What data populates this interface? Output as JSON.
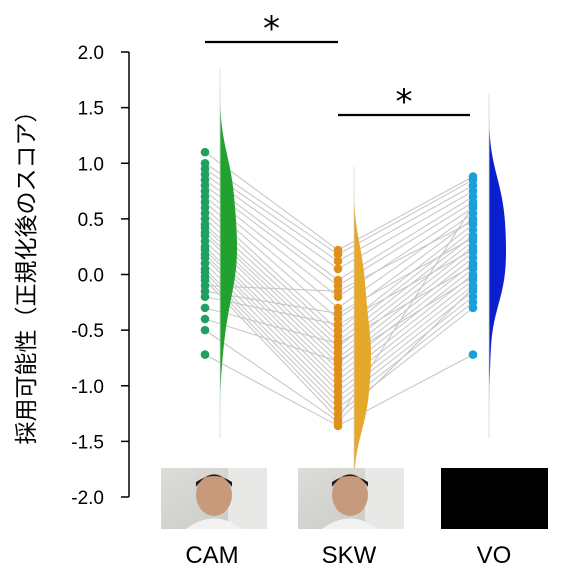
{
  "chart_data": {
    "type": "scatter",
    "subtype": "raincloud with paired lines",
    "ylabel": "採用可能性（正規化後のスコア）",
    "ylim": [
      -2.0,
      2.0
    ],
    "yticks": [
      "2.0",
      "1.5",
      "1.0",
      "0.5",
      "0.0",
      "-0.5",
      "-1.0",
      "-1.5",
      "-2.0"
    ],
    "categories": [
      "CAM",
      "SKW",
      "VO"
    ],
    "colors": {
      "CAM": "#22a12e",
      "CAM_points": "#20a060",
      "SKW": "#e6a82a",
      "SKW_points": "#e0901a",
      "VO": "#0c1fd0",
      "VO_points": "#1aa0d8",
      "pair_lines": "#c8c8c8"
    },
    "series": [
      {
        "name": "CAM",
        "values": [
          1.1,
          1.0,
          0.95,
          0.9,
          0.85,
          0.8,
          0.75,
          0.7,
          0.65,
          0.6,
          0.55,
          0.5,
          0.45,
          0.42,
          0.38,
          0.35,
          0.3,
          0.25,
          0.22,
          0.18,
          0.15,
          0.1,
          0.05,
          0.02,
          -0.02,
          -0.05,
          -0.1,
          -0.15,
          -0.2,
          -0.3,
          -0.4,
          -0.5,
          -0.72
        ]
      },
      {
        "name": "SKW",
        "values": [
          0.22,
          0.18,
          0.12,
          0.05,
          -0.05,
          -0.1,
          -0.2,
          -0.3,
          -0.4,
          -0.5,
          -0.55,
          -0.6,
          -0.65,
          -0.7,
          -0.75,
          -0.8,
          -0.85,
          -0.9,
          -0.95,
          -1.0,
          -1.05,
          -1.1,
          -1.15,
          -1.2,
          -1.25,
          -1.3,
          -0.15,
          -0.35,
          -0.45,
          -0.62,
          -0.78,
          -1.32,
          -1.36
        ]
      },
      {
        "name": "VO",
        "values": [
          0.88,
          0.85,
          0.8,
          0.75,
          0.7,
          0.65,
          0.6,
          0.55,
          0.5,
          0.45,
          0.4,
          0.35,
          0.3,
          0.25,
          0.2,
          0.15,
          0.1,
          0.05,
          0.0,
          -0.05,
          -0.1,
          -0.15,
          -0.2,
          -0.25,
          -0.3,
          0.62,
          0.48,
          0.33,
          0.22,
          0.08,
          -0.02,
          -0.12,
          -0.72
        ]
      }
    ],
    "significance": [
      {
        "from": "CAM",
        "to": "SKW",
        "label": "*"
      },
      {
        "from": "SKW",
        "to": "VO",
        "label": "*"
      }
    ]
  }
}
